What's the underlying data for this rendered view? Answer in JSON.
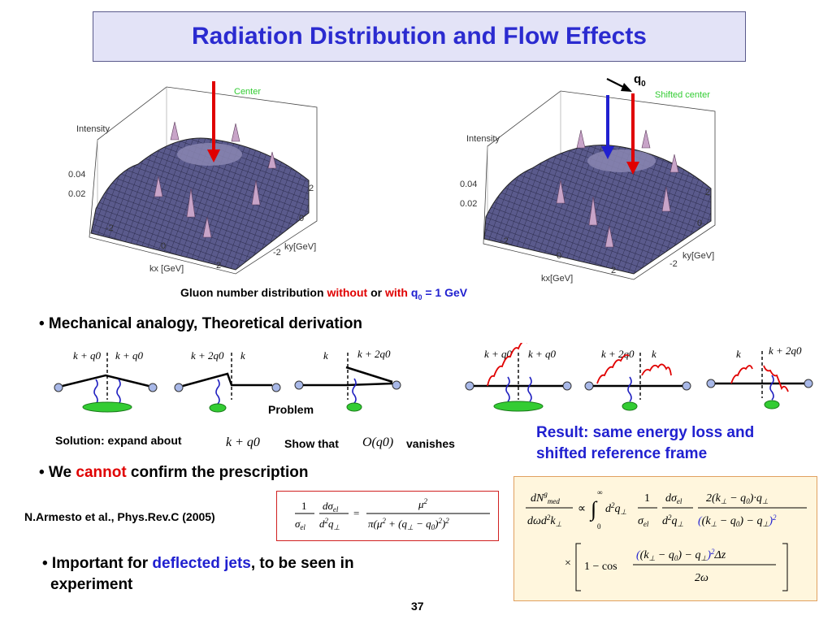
{
  "title": "Radiation Distribution and Flow Effects",
  "plots": {
    "left": {
      "z_label": "Intensity",
      "marker_label": "Center",
      "tick_z": [
        "0.04",
        "0.02"
      ],
      "kx_label": "kx [GeV]",
      "ky_label": "ky[GeV]",
      "ticks": [
        "-2",
        "0",
        "2"
      ]
    },
    "right": {
      "z_label": "Intensity",
      "marker_label": "Shifted center",
      "q_label": "q",
      "q_sub": "0",
      "tick_z": [
        "0.04",
        "0.02"
      ],
      "kx_label": "kx[GeV]",
      "ky_label": "ky[GeV]",
      "ticks": [
        "-2",
        "0",
        "2"
      ]
    }
  },
  "caption": {
    "pre": "Gluon number distribution ",
    "without": "without",
    "or": " or ",
    "with": "with",
    "q": " q",
    "q_sub": "0",
    "post": " = 1 GeV"
  },
  "bullet1": "• Mechanical analogy, Theoretical derivation",
  "diagrams": {
    "labels_a": [
      "k + q0",
      "k + q0"
    ],
    "labels_b": [
      "k + 2q0",
      "k"
    ],
    "labels_c": [
      "k",
      "k + 2q0"
    ],
    "problem": "Problem"
  },
  "solution": {
    "text": "Solution:  expand about",
    "expr": "k + q0",
    "show": "Show that",
    "show_expr": "O(q0)",
    "vanishes": "vanishes"
  },
  "result": {
    "line1": "Result: same energy loss and",
    "line2": "shifted reference frame"
  },
  "bullet2": {
    "pre": "• We ",
    "cannot": "cannot",
    "post": " confirm the prescription"
  },
  "reference": "N.Armesto et al.,  Phys.Rev.C (2005)",
  "bullet3": {
    "pre": "• Important for ",
    "blue": "deflected jets",
    "post": ", to be seen in",
    "line2": "experiment"
  },
  "page_number": "37",
  "colors": {
    "title_text": "#2b2bd0",
    "title_bg": "#e3e3f7",
    "red": "#e00000",
    "blue": "#2020d0",
    "gluon": "#2020c0",
    "blob": "#33cc33",
    "vertex": "#a8b8e8"
  }
}
